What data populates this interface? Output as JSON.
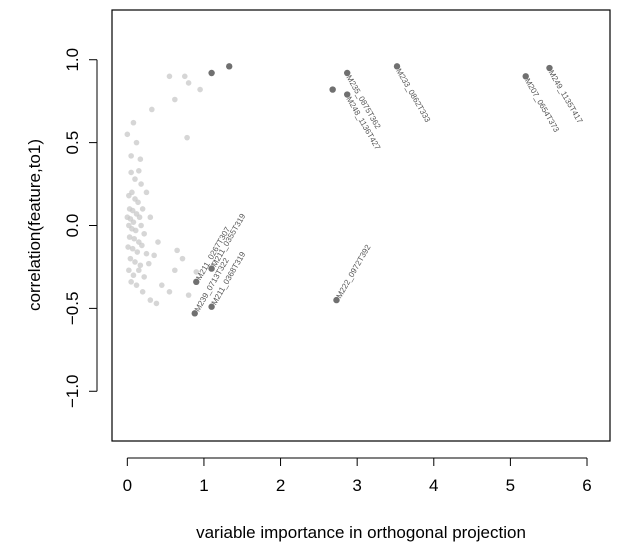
{
  "chart_data": {
    "type": "scatter",
    "title": "",
    "xlabel": "variable importance in orthogonal projection",
    "ylabel": "correlation(feature,to1)",
    "xlim": [
      -0.2,
      6.3
    ],
    "ylim": [
      -1.3,
      1.3
    ],
    "xticks": [
      "0",
      "1",
      "2",
      "3",
      "4",
      "5",
      "6"
    ],
    "yticks": [
      "-1.0",
      "-0.5",
      "0.0",
      "0.5",
      "1.0"
    ],
    "grid": false,
    "colors": {
      "highlight": "#707070",
      "faint": "#c8c8c8",
      "label": "#555555"
    },
    "highlighted": [
      {
        "x": 1.1,
        "y": 0.92,
        "label": ""
      },
      {
        "x": 1.33,
        "y": 0.96,
        "label": ""
      },
      {
        "x": 2.68,
        "y": 0.82,
        "label": ""
      },
      {
        "x": 2.87,
        "y": 0.92,
        "label": "M235_0875T362"
      },
      {
        "x": 2.87,
        "y": 0.79,
        "label": "M248_1136T427"
      },
      {
        "x": 3.52,
        "y": 0.96,
        "label": "M233_0862T333"
      },
      {
        "x": 5.2,
        "y": 0.9,
        "label": "M207_0654T373"
      },
      {
        "x": 5.51,
        "y": 0.95,
        "label": "M249_1135T417"
      },
      {
        "x": 1.1,
        "y": -0.26,
        "label": "M211_0355T319"
      },
      {
        "x": 0.9,
        "y": -0.34,
        "label": "M211_0267T307"
      },
      {
        "x": 0.88,
        "y": -0.53,
        "label": "M239_0713T322"
      },
      {
        "x": 1.1,
        "y": -0.49,
        "label": "M211_0368T319"
      },
      {
        "x": 2.73,
        "y": -0.45,
        "label": "M222_0972T392"
      }
    ],
    "background_points": [
      [
        0.0,
        0.55
      ],
      [
        0.08,
        0.62
      ],
      [
        0.12,
        0.5
      ],
      [
        0.17,
        0.4
      ],
      [
        0.32,
        0.7
      ],
      [
        0.55,
        0.9
      ],
      [
        0.62,
        0.76
      ],
      [
        0.75,
        0.9
      ],
      [
        0.8,
        0.86
      ],
      [
        0.95,
        0.82
      ],
      [
        0.78,
        0.53
      ],
      [
        0.05,
        0.32
      ],
      [
        0.1,
        0.28
      ],
      [
        0.15,
        0.33
      ],
      [
        0.02,
        0.18
      ],
      [
        0.06,
        0.2
      ],
      [
        0.1,
        0.16
      ],
      [
        0.14,
        0.14
      ],
      [
        0.03,
        0.1
      ],
      [
        0.07,
        0.09
      ],
      [
        0.12,
        0.07
      ],
      [
        0.0,
        0.05
      ],
      [
        0.04,
        0.04
      ],
      [
        0.08,
        0.02
      ],
      [
        0.16,
        0.05
      ],
      [
        0.2,
        0.1
      ],
      [
        0.02,
        0.0
      ],
      [
        0.06,
        -0.02
      ],
      [
        0.11,
        -0.03
      ],
      [
        0.18,
        0.0
      ],
      [
        0.03,
        -0.07
      ],
      [
        0.09,
        -0.08
      ],
      [
        0.15,
        -0.1
      ],
      [
        0.22,
        -0.05
      ],
      [
        0.01,
        -0.13
      ],
      [
        0.07,
        -0.14
      ],
      [
        0.13,
        -0.16
      ],
      [
        0.19,
        -0.12
      ],
      [
        0.25,
        -0.17
      ],
      [
        0.04,
        -0.2
      ],
      [
        0.1,
        -0.22
      ],
      [
        0.17,
        -0.24
      ],
      [
        0.28,
        -0.23
      ],
      [
        0.35,
        -0.18
      ],
      [
        0.02,
        -0.27
      ],
      [
        0.08,
        -0.3
      ],
      [
        0.15,
        -0.27
      ],
      [
        0.22,
        -0.31
      ],
      [
        0.05,
        -0.34
      ],
      [
        0.12,
        -0.36
      ],
      [
        0.2,
        -0.4
      ],
      [
        0.3,
        -0.45
      ],
      [
        0.38,
        -0.47
      ],
      [
        0.45,
        -0.36
      ],
      [
        0.55,
        -0.4
      ],
      [
        0.62,
        -0.27
      ],
      [
        0.65,
        -0.15
      ],
      [
        0.72,
        -0.2
      ],
      [
        0.8,
        -0.42
      ],
      [
        0.9,
        -0.28
      ],
      [
        0.25,
        0.2
      ],
      [
        0.3,
        0.05
      ],
      [
        0.4,
        -0.1
      ],
      [
        0.18,
        0.25
      ],
      [
        0.05,
        0.42
      ]
    ]
  }
}
